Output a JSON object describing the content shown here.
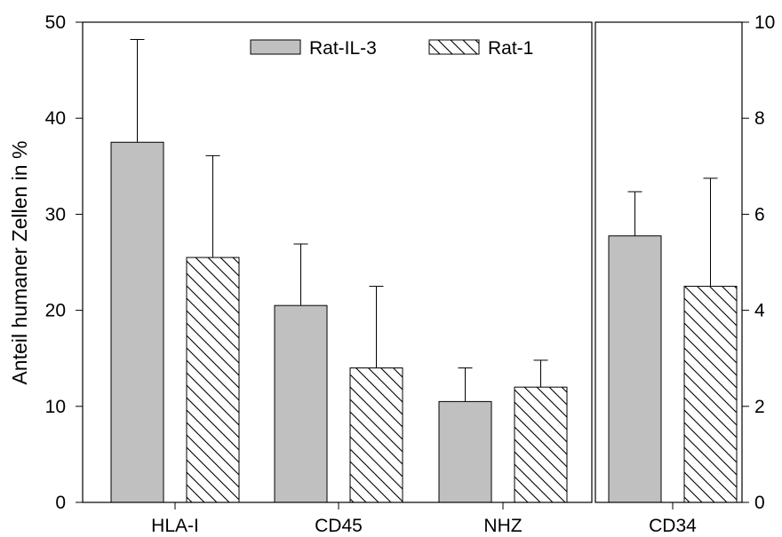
{
  "chart_data": {
    "type": "bar",
    "ylabel": "Anteil humaner Zellen in %",
    "series": [
      {
        "name": "Rat-IL-3",
        "fill": "#c0c0c0",
        "pattern": "solid"
      },
      {
        "name": "Rat-1",
        "fill": "#ffffff",
        "pattern": "diagonal-hatch"
      }
    ],
    "left_panel": {
      "categories": [
        "HLA-I",
        "CD45",
        "NHZ"
      ],
      "ylim": [
        0,
        50
      ],
      "yticks": [
        "0",
        "10",
        "20",
        "30",
        "40",
        "50"
      ],
      "values": {
        "Rat-IL-3": [
          37.5,
          20.5,
          10.5
        ],
        "Rat-1": [
          25.5,
          14.0,
          12.0
        ]
      },
      "errors": {
        "Rat-IL-3": [
          10.7,
          6.4,
          3.5
        ],
        "Rat-1": [
          10.6,
          8.5,
          2.8
        ]
      }
    },
    "right_panel": {
      "categories": [
        "CD34"
      ],
      "ylim": [
        0,
        10
      ],
      "yticks": [
        "0",
        "2",
        "4",
        "6",
        "8",
        "10"
      ],
      "values": {
        "Rat-IL-3": [
          5.55
        ],
        "Rat-1": [
          4.5
        ]
      },
      "errors": {
        "Rat-IL-3": [
          0.92
        ],
        "Rat-1": [
          2.25
        ]
      }
    },
    "legend": "top-center",
    "grid": false
  }
}
